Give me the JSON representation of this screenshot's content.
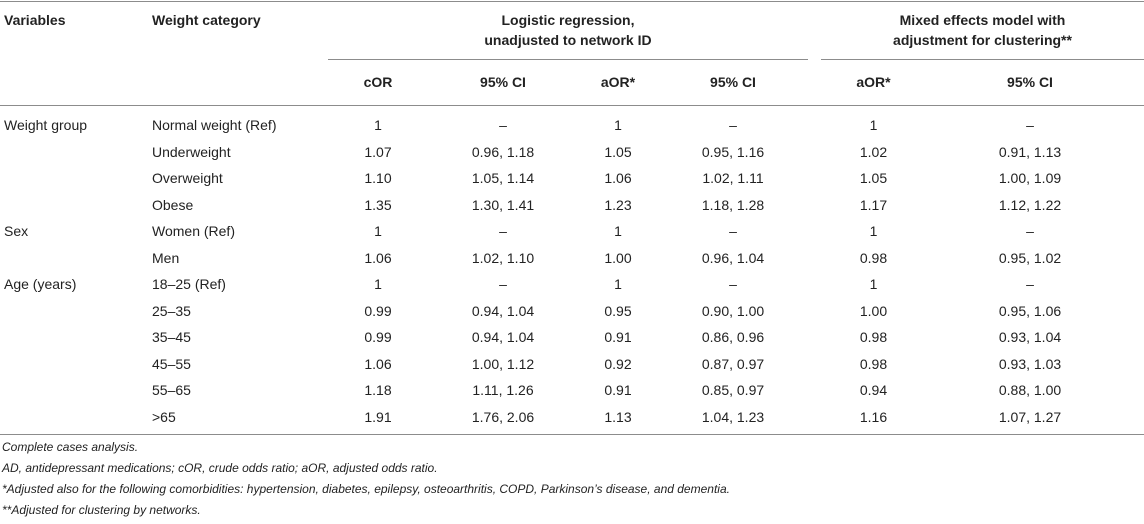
{
  "header": {
    "variables": "Variables",
    "weight_category": "Weight category",
    "group1_line1": "Logistic regression,",
    "group1_line2": "unadjusted to network ID",
    "group2_line1": "Mixed effects model with",
    "group2_line2": "adjustment for clustering**",
    "sub": [
      "cOR",
      "95% CI",
      "aOR*",
      "95% CI",
      "aOR*",
      "95% CI"
    ]
  },
  "rows": [
    {
      "variable": "Weight group",
      "category": "Normal weight (Ref)",
      "cells": [
        "1",
        "–",
        "1",
        "–",
        "1",
        "–"
      ]
    },
    {
      "variable": "",
      "category": "Underweight",
      "cells": [
        "1.07",
        "0.96, 1.18",
        "1.05",
        "0.95, 1.16",
        "1.02",
        "0.91, 1.13"
      ]
    },
    {
      "variable": "",
      "category": "Overweight",
      "cells": [
        "1.10",
        "1.05, 1.14",
        "1.06",
        "1.02, 1.11",
        "1.05",
        "1.00, 1.09"
      ]
    },
    {
      "variable": "",
      "category": "Obese",
      "cells": [
        "1.35",
        "1.30, 1.41",
        "1.23",
        "1.18, 1.28",
        "1.17",
        "1.12, 1.22"
      ]
    },
    {
      "variable": "Sex",
      "category": "Women (Ref)",
      "cells": [
        "1",
        "–",
        "1",
        "–",
        "1",
        "–"
      ]
    },
    {
      "variable": "",
      "category": "Men",
      "cells": [
        "1.06",
        "1.02, 1.10",
        "1.00",
        "0.96, 1.04",
        "0.98",
        "0.95, 1.02"
      ]
    },
    {
      "variable": "Age (years)",
      "category": "18–25 (Ref)",
      "cells": [
        "1",
        "–",
        "1",
        "–",
        "1",
        "–"
      ]
    },
    {
      "variable": "",
      "category": "25–35",
      "cells": [
        "0.99",
        "0.94, 1.04",
        "0.95",
        "0.90, 1.00",
        "1.00",
        "0.95, 1.06"
      ]
    },
    {
      "variable": "",
      "category": "35–45",
      "cells": [
        "0.99",
        "0.94, 1.04",
        "0.91",
        "0.86, 0.96",
        "0.98",
        "0.93, 1.04"
      ]
    },
    {
      "variable": "",
      "category": "45–55",
      "cells": [
        "1.06",
        "1.00, 1.12",
        "0.92",
        "0.87, 0.97",
        "0.98",
        "0.93, 1.03"
      ]
    },
    {
      "variable": "",
      "category": "55–65",
      "cells": [
        "1.18",
        "1.11, 1.26",
        "0.91",
        "0.85, 0.97",
        "0.94",
        "0.88, 1.00"
      ]
    },
    {
      "variable": "",
      "category": ">65",
      "cells": [
        "1.91",
        "1.76, 2.06",
        "1.13",
        "1.04, 1.23",
        "1.16",
        "1.07, 1.27"
      ]
    }
  ],
  "footnotes": {
    "f1": "Complete cases analysis.",
    "f2": "AD, antidepressant medications; cOR, crude odds ratio; aOR, adjusted odds ratio.",
    "f3": "*Adjusted also for the following comorbidities: hypertension, diabetes, epilepsy, osteoarthritis, COPD, Parkinson’s disease, and dementia.",
    "f4": "**Adjusted for clustering by networks."
  }
}
